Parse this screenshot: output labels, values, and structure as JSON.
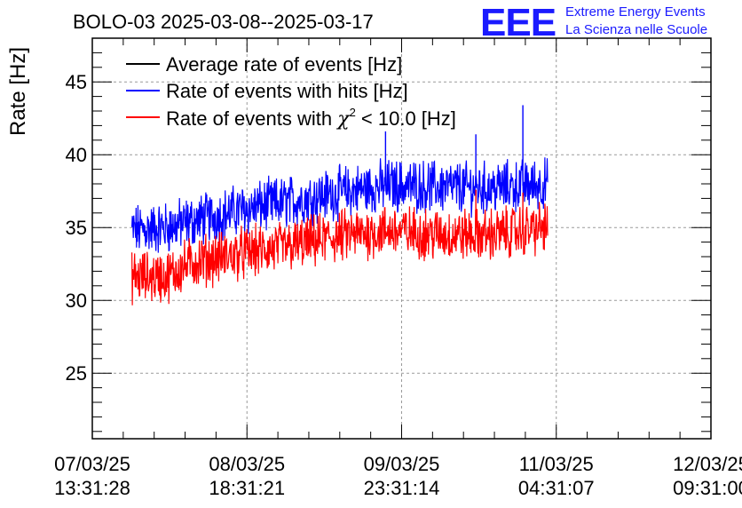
{
  "chart_data": {
    "type": "line",
    "title": "BOLO-03 2025-03-08--2025-03-17",
    "ylabel": "Rate [Hz]",
    "xlabel": "",
    "ylim": [
      20.5,
      48
    ],
    "yticks": [
      25,
      30,
      35,
      40,
      45
    ],
    "ytick_labels": [
      "25",
      "30",
      "35",
      "40",
      "45"
    ],
    "xticks": [
      {
        "date": "07/03/25",
        "time": "13:31:28"
      },
      {
        "date": "08/03/25",
        "time": "18:31:21"
      },
      {
        "date": "09/03/25",
        "time": "23:31:14"
      },
      {
        "date": "11/03/25",
        "time": "04:31:07"
      },
      {
        "date": "12/03/25",
        "time": "09:31:00"
      }
    ],
    "x_days_range": [
      0,
      5.0
    ],
    "data_x_range": [
      0.32,
      3.68
    ],
    "grid": true,
    "legend_position": "top-left",
    "series": [
      {
        "name": "Average rate of events [Hz]",
        "color": "#000000",
        "values": []
      },
      {
        "name": "Rate of events with hits [Hz]",
        "color": "#0000ff",
        "x": [
          0.32,
          0.6,
          0.8,
          1.2,
          1.6,
          2.0,
          2.4,
          2.8,
          3.2,
          3.68
        ],
        "values": [
          34.8,
          35.0,
          35.4,
          36.2,
          36.8,
          37.4,
          37.9,
          37.8,
          37.7,
          38.0
        ]
      },
      {
        "name": "Rate of events with chi2 < 10.0 [Hz]",
        "legend_prefix": "Rate of events with ",
        "legend_sup": "2",
        "legend_suffix": " < 10.0 [Hz]",
        "color": "#ff0000",
        "x": [
          0.32,
          0.6,
          0.8,
          1.2,
          1.6,
          2.0,
          2.4,
          2.8,
          3.2,
          3.68
        ],
        "values": [
          31.6,
          31.6,
          32.6,
          33.2,
          33.7,
          34.4,
          34.8,
          34.5,
          34.5,
          35.0
        ]
      }
    ],
    "spikes": [
      {
        "series": 1,
        "x": 2.37,
        "value": 41.6
      },
      {
        "series": 1,
        "x": 3.48,
        "value": 43.4
      },
      {
        "series": 1,
        "x": 3.1,
        "value": 41.4
      },
      {
        "series": 2,
        "x": 3.1,
        "value": 37.6
      },
      {
        "series": 2,
        "x": 3.48,
        "value": 37.4
      }
    ]
  },
  "logo": {
    "mark": "EEE",
    "line1": "Extreme Energy Events",
    "line2": "La Scienza nelle Scuole"
  },
  "colors": {
    "blue": "#0000ff",
    "red": "#ff0000",
    "black": "#000000",
    "logo": "#1a1aff"
  }
}
